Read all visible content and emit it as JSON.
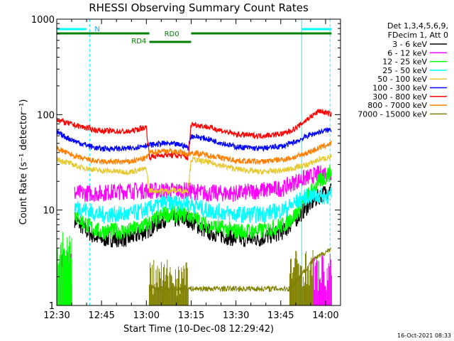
{
  "chart_data": {
    "type": "line",
    "title": "RHESSI Observing Summary Count Rates",
    "xlabel": "Start Time (10-Dec-08 12:29:42)",
    "ylabel": "Count Rate (s⁻¹ detector⁻¹)",
    "y_scale": "log",
    "ylim": [
      1,
      1000
    ],
    "xlim_minutes": [
      0,
      95
    ],
    "x_ticks": [
      {
        "t": 0,
        "label": "12:30"
      },
      {
        "t": 15,
        "label": "12:45"
      },
      {
        "t": 30,
        "label": "13:00"
      },
      {
        "t": 45,
        "label": "13:15"
      },
      {
        "t": 60,
        "label": "13:30"
      },
      {
        "t": 75,
        "label": "13:45"
      },
      {
        "t": 90,
        "label": "14:00"
      }
    ],
    "y_ticks": [
      {
        "v": 1,
        "label": "1"
      },
      {
        "v": 10,
        "label": "10"
      },
      {
        "v": 100,
        "label": "100"
      },
      {
        "v": 1000,
        "label": "1000"
      }
    ],
    "legend_header": [
      "Det 1,3,4,5,6,9,",
      "FDecim 1, Att 0"
    ],
    "legend_position": "right",
    "series": [
      {
        "name": "3 - 6 keV",
        "color": "#000000",
        "t": [
          0,
          6,
          10,
          14,
          24,
          30,
          36,
          44,
          50,
          60,
          68,
          76,
          80,
          84,
          88,
          92
        ],
        "values": [
          null,
          8,
          6,
          5,
          5,
          6,
          8,
          8,
          6,
          5,
          5,
          6,
          8,
          11,
          14,
          17
        ]
      },
      {
        "name": "6 - 12 keV",
        "color": "#ff00ff",
        "t": [
          0,
          6,
          10,
          14,
          24,
          30,
          36,
          44,
          50,
          60,
          68,
          76,
          80,
          84,
          88,
          92
        ],
        "values": [
          null,
          15,
          15,
          15,
          16,
          16,
          16,
          16,
          15,
          15,
          16,
          17,
          20,
          22,
          24,
          25
        ]
      },
      {
        "name": "12 - 25 keV",
        "color": "#00ff00",
        "t": [
          0,
          6,
          10,
          14,
          24,
          30,
          36,
          44,
          50,
          60,
          68,
          76,
          80,
          84,
          88,
          92
        ],
        "values": [
          null,
          9,
          7,
          6,
          6,
          7,
          9,
          9,
          7,
          6,
          6,
          7,
          9,
          14,
          20,
          25
        ]
      },
      {
        "name": "25 - 50 keV",
        "color": "#00ffff",
        "t": [
          0,
          6,
          10,
          14,
          24,
          30,
          36,
          44,
          50,
          60,
          68,
          76,
          80,
          84,
          88,
          92
        ],
        "values": [
          null,
          11,
          10,
          9,
          9,
          10,
          12,
          12,
          10,
          9,
          9,
          10,
          12,
          14,
          14,
          14
        ]
      },
      {
        "name": "50 - 100 keV",
        "color": "#e6c832",
        "t": [
          0,
          3,
          8,
          14,
          24,
          30,
          31,
          36,
          42,
          44,
          45,
          50,
          60,
          68,
          76,
          80,
          84,
          88,
          92
        ],
        "values": [
          34,
          32,
          28,
          26,
          25,
          27,
          16,
          16,
          16,
          16,
          34,
          32,
          27,
          25,
          26,
          28,
          30,
          34,
          36
        ]
      },
      {
        "name": "100 - 300 keV",
        "color": "#0000ff",
        "t": [
          0,
          3,
          8,
          14,
          24,
          30,
          31,
          36,
          42,
          44,
          45,
          50,
          60,
          68,
          76,
          80,
          84,
          88,
          92
        ],
        "values": [
          65,
          58,
          50,
          44,
          44,
          48,
          48,
          50,
          48,
          45,
          60,
          56,
          46,
          44,
          47,
          52,
          60,
          66,
          70
        ]
      },
      {
        "name": "300 - 800 keV",
        "color": "#ff0000",
        "t": [
          0,
          3,
          8,
          14,
          24,
          30,
          31,
          36,
          42,
          44,
          45,
          50,
          60,
          68,
          76,
          80,
          84,
          88,
          92
        ],
        "values": [
          90,
          82,
          75,
          68,
          66,
          74,
          36,
          38,
          37,
          35,
          80,
          75,
          62,
          60,
          63,
          72,
          90,
          110,
          100
        ]
      },
      {
        "name": "800 - 7000 keV",
        "color": "#ff8000",
        "t": [
          0,
          3,
          8,
          14,
          24,
          30,
          31,
          36,
          42,
          44,
          45,
          50,
          60,
          68,
          76,
          80,
          84,
          88,
          92
        ],
        "values": [
          45,
          40,
          35,
          32,
          32,
          35,
          40,
          42,
          40,
          38,
          40,
          38,
          33,
          32,
          34,
          36,
          40,
          45,
          50
        ]
      },
      {
        "name": "7000 - 15000 keV",
        "color": "#808000",
        "t": [
          0,
          6,
          31,
          44,
          78,
          86,
          92
        ],
        "values": [
          null,
          null,
          1.5,
          1.5,
          1.5,
          3,
          4
        ]
      }
    ],
    "annotations": [
      {
        "label": "N",
        "color": "#00ffff"
      },
      {
        "label": "RD0",
        "color": "#008000"
      },
      {
        "label": "RD4",
        "color": "#008000"
      }
    ],
    "timestamp": "16-Oct-2021 08:33"
  }
}
